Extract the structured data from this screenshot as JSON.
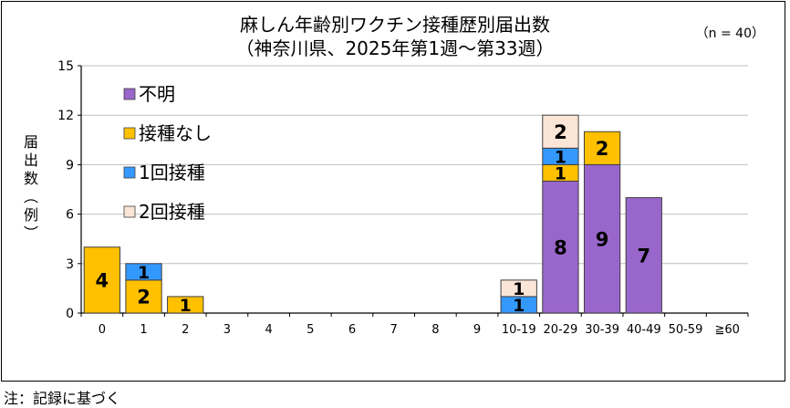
{
  "title": "麻しん年齢別ワクチン接種歴別届出数",
  "subtitle": "（神奈川県、2025年第1週～第33週）",
  "n_label": "（n = 40）",
  "ylabel_chars": [
    "届",
    "出",
    "数",
    "︵",
    "例",
    "︶"
  ],
  "note": "注：記録に基づく",
  "chart_data": {
    "type": "bar",
    "stacked": true,
    "categories": [
      "0",
      "1",
      "2",
      "3",
      "4",
      "5",
      "6",
      "7",
      "8",
      "9",
      "10-19",
      "20-29",
      "30-39",
      "40-49",
      "50-59",
      "≧60"
    ],
    "series": [
      {
        "name": "不明",
        "color": "#9966cc",
        "values": [
          0,
          0,
          0,
          0,
          0,
          0,
          0,
          0,
          0,
          0,
          0,
          8,
          9,
          7,
          0,
          0
        ]
      },
      {
        "name": "接種なし",
        "color": "#ffc000",
        "values": [
          4,
          2,
          1,
          0,
          0,
          0,
          0,
          0,
          0,
          0,
          0,
          1,
          2,
          0,
          0,
          0
        ]
      },
      {
        "name": "1回接種",
        "color": "#3399ff",
        "values": [
          0,
          1,
          0,
          0,
          0,
          0,
          0,
          0,
          0,
          0,
          1,
          1,
          0,
          0,
          0,
          0
        ]
      },
      {
        "name": "2回接種",
        "color": "#fbe5d6",
        "values": [
          0,
          0,
          0,
          0,
          0,
          0,
          0,
          0,
          0,
          0,
          1,
          2,
          0,
          0,
          0,
          0
        ]
      }
    ],
    "ylim": [
      0,
      15
    ],
    "yticks": [
      0,
      3,
      6,
      9,
      12,
      15
    ],
    "grid": true,
    "legend_position": "top-left"
  }
}
